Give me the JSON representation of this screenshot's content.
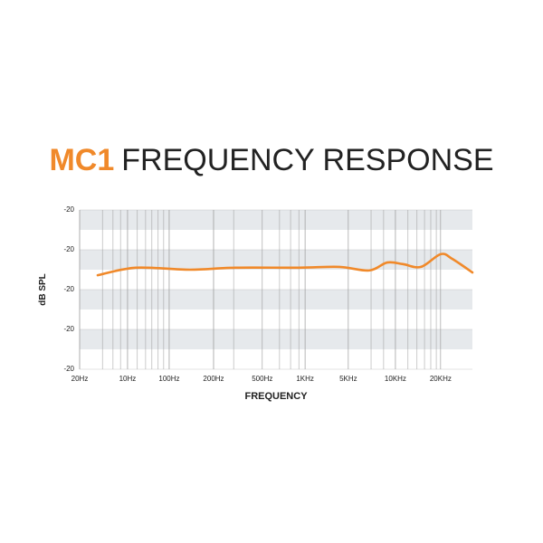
{
  "chart_data": {
    "type": "line",
    "title_highlight": "MC1",
    "title": "FREQUENCY RESPONSE",
    "xlabel": "FREQUENCY",
    "ylabel": "dB SPL",
    "xlim": [
      0,
      100
    ],
    "ylim": [
      0,
      4
    ],
    "xticks": [
      {
        "value": 0,
        "label": "20Hz"
      },
      {
        "value": 12.2,
        "label": "10Hz"
      },
      {
        "value": 22.8,
        "label": "100Hz"
      },
      {
        "value": 34.1,
        "label": "200Hz"
      },
      {
        "value": 46.5,
        "label": "500Hz"
      },
      {
        "value": 57.4,
        "label": "1KHz"
      },
      {
        "value": 68.4,
        "label": "5KHz"
      },
      {
        "value": 80.4,
        "label": "10KHz"
      },
      {
        "value": 91.9,
        "label": "20KHz"
      }
    ],
    "yticks": [
      {
        "value": 0,
        "label": "-20"
      },
      {
        "value": 1,
        "label": "-20"
      },
      {
        "value": 2,
        "label": "-20"
      },
      {
        "value": 3,
        "label": "-20"
      },
      {
        "value": 4,
        "label": "-20"
      }
    ],
    "xgrid": [
      5.8,
      8.5,
      10.4,
      12.2,
      14.7,
      16.8,
      18.4,
      20,
      21.4,
      22.8,
      34.1,
      39.2,
      46.5,
      50.9,
      53.7,
      55.8,
      57.4,
      68.4,
      74.2,
      77.4,
      80.4,
      83.6,
      85.9,
      87.8,
      89.4,
      90.8,
      91.9
    ],
    "x": [
      4.6,
      14.3,
      28.1,
      39.6,
      55.8,
      66.1,
      73.7,
      78.3,
      82.3,
      86.9,
      91.9,
      94.9,
      100
    ],
    "series": [
      {
        "color": "#f0892a",
        "values": [
          2.36,
          2.55,
          2.5,
          2.55,
          2.55,
          2.57,
          2.48,
          2.68,
          2.64,
          2.57,
          2.89,
          2.77,
          2.43
        ]
      }
    ]
  }
}
